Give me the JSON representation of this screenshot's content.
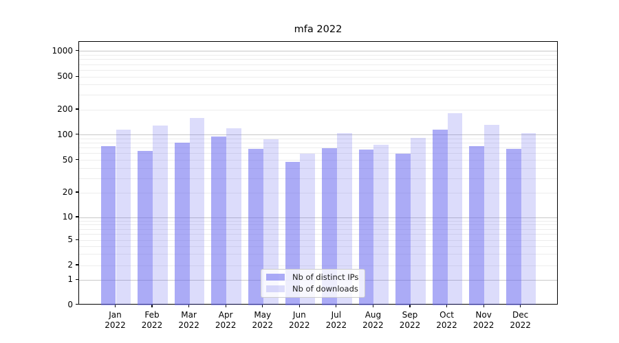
{
  "chart_data": {
    "type": "bar",
    "title": "mfa 2022",
    "categories": [
      "Jan",
      "Feb",
      "Mar",
      "Apr",
      "May",
      "Jun",
      "Jul",
      "Aug",
      "Sep",
      "Oct",
      "Nov",
      "Dec"
    ],
    "x_tick_year": "2022",
    "series": [
      {
        "name": "Nb of distinct IPs",
        "color": "#6666ee",
        "alpha": 0.55,
        "values": [
          73,
          65,
          81,
          95,
          68,
          48,
          70,
          67,
          60,
          116,
          74,
          69
        ]
      },
      {
        "name": "Nb of downloads",
        "color": "#6666ee",
        "alpha": 0.23,
        "values": [
          115,
          130,
          158,
          120,
          89,
          60,
          105,
          76,
          93,
          183,
          133,
          105
        ]
      }
    ],
    "y_ticks": [
      0,
      1,
      2,
      5,
      10,
      20,
      50,
      100,
      200,
      500,
      1000
    ],
    "y_scale": "symlog",
    "ylim": [
      0,
      1270
    ],
    "grid": true,
    "legend_position": "lower center",
    "colors": {
      "bar_base": "#6666ee",
      "grid_major": "#c8c8c8",
      "grid_minor": "#ececec",
      "axis": "#000000",
      "legend_border": "#cccccc"
    }
  }
}
